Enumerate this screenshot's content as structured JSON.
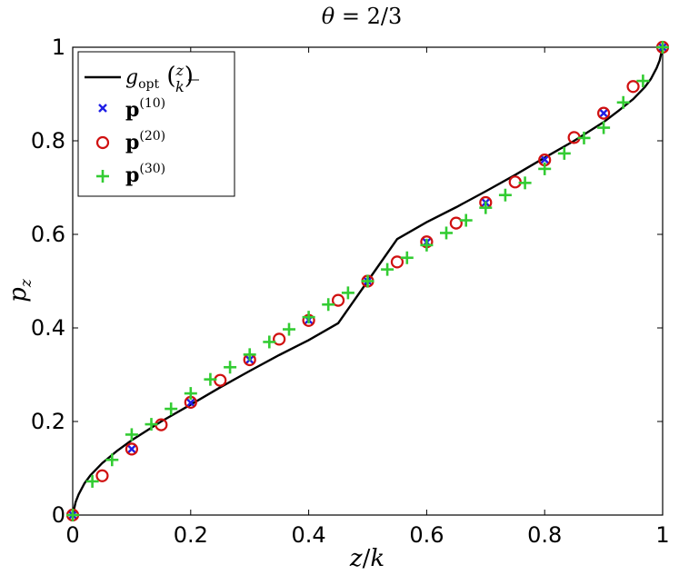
{
  "chart_data": {
    "type": "line",
    "title": "θ = 2/3",
    "xlabel": "z/k",
    "ylabel": "p_z",
    "xlim": [
      0,
      1
    ],
    "ylim": [
      0,
      1
    ],
    "xticks": [
      "0",
      "0.2",
      "0.4",
      "0.6",
      "0.8",
      "1"
    ],
    "yticks": [
      "0",
      "0.2",
      "0.4",
      "0.6",
      "0.8",
      "1"
    ],
    "legend_position": "top-left",
    "series": [
      {
        "name": "g_opt(z/k)",
        "kind": "line",
        "color": "#000000",
        "x": [
          0,
          0.005,
          0.01,
          0.02,
          0.03,
          0.05,
          0.075,
          0.1,
          0.15,
          0.2,
          0.25,
          0.3,
          0.35,
          0.4,
          0.45,
          0.5,
          0.55,
          0.6,
          0.65,
          0.7,
          0.75,
          0.8,
          0.85,
          0.9,
          0.925,
          0.95,
          0.97,
          0.98,
          0.99,
          0.995,
          1
        ],
        "y": [
          0,
          0.028,
          0.044,
          0.068,
          0.085,
          0.111,
          0.137,
          0.16,
          0.2,
          0.236,
          0.273,
          0.308,
          0.342,
          0.374,
          0.41,
          0.5,
          0.59,
          0.626,
          0.658,
          0.692,
          0.727,
          0.764,
          0.8,
          0.84,
          0.864,
          0.889,
          0.915,
          0.932,
          0.956,
          0.972,
          1
        ]
      },
      {
        "name": "p^(10)",
        "kind": "x-marker",
        "color": "#1f1fe6",
        "x": [
          0,
          0.1,
          0.2,
          0.3,
          0.4,
          0.5,
          0.6,
          0.7,
          0.8,
          0.9,
          1
        ],
        "y": [
          0,
          0.141,
          0.24,
          0.332,
          0.417,
          0.5,
          0.583,
          0.668,
          0.76,
          0.859,
          1
        ]
      },
      {
        "name": "p^(20)",
        "kind": "circle-marker",
        "color": "#d01010",
        "x": [
          0,
          0.05,
          0.1,
          0.15,
          0.2,
          0.25,
          0.3,
          0.35,
          0.4,
          0.45,
          0.5,
          0.55,
          0.6,
          0.65,
          0.7,
          0.75,
          0.8,
          0.85,
          0.9,
          0.95,
          1
        ],
        "y": [
          0,
          0.084,
          0.141,
          0.193,
          0.241,
          0.288,
          0.332,
          0.376,
          0.416,
          0.459,
          0.5,
          0.541,
          0.584,
          0.624,
          0.668,
          0.712,
          0.759,
          0.807,
          0.859,
          0.916,
          1
        ]
      },
      {
        "name": "p^(30)",
        "kind": "plus-marker",
        "color": "#33cc33",
        "x": [
          0,
          0.0333,
          0.0667,
          0.1,
          0.1333,
          0.1667,
          0.2,
          0.2333,
          0.2667,
          0.3,
          0.3333,
          0.3667,
          0.4,
          0.4333,
          0.4667,
          0.5,
          0.5333,
          0.5667,
          0.6,
          0.6333,
          0.6667,
          0.7,
          0.7333,
          0.7667,
          0.8,
          0.8333,
          0.8667,
          0.9,
          0.9333,
          0.9667,
          1
        ],
        "y": [
          0,
          0.072,
          0.118,
          0.172,
          0.194,
          0.227,
          0.26,
          0.29,
          0.316,
          0.343,
          0.37,
          0.397,
          0.423,
          0.45,
          0.475,
          0.5,
          0.525,
          0.55,
          0.577,
          0.603,
          0.63,
          0.657,
          0.684,
          0.71,
          0.74,
          0.773,
          0.806,
          0.828,
          0.882,
          0.928,
          1
        ]
      }
    ]
  }
}
